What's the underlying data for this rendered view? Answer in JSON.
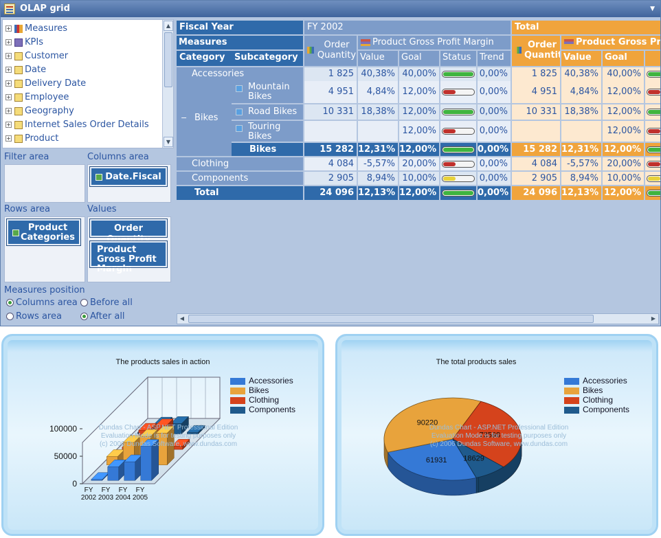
{
  "window": {
    "title": "OLAP grid"
  },
  "tree": {
    "items": [
      {
        "label": "Measures",
        "icon": "measures-icon"
      },
      {
        "label": "KPIs",
        "icon": "kpi-icon"
      },
      {
        "label": "Customer",
        "icon": "dimension-icon"
      },
      {
        "label": "Date",
        "icon": "dimension-icon"
      },
      {
        "label": "Delivery Date",
        "icon": "dimension-icon"
      },
      {
        "label": "Employee",
        "icon": "dimension-icon"
      },
      {
        "label": "Geography",
        "icon": "dimension-icon"
      },
      {
        "label": "Internet Sales Order Details",
        "icon": "dimension-icon"
      },
      {
        "label": "Product",
        "icon": "dimension-icon"
      }
    ]
  },
  "areas": {
    "filter_label": "Filter area",
    "columns_label": "Columns area",
    "rows_label": "Rows area",
    "values_label": "Values",
    "columns_field": "Date.Fiscal",
    "rows_field": "Product Categories",
    "value_fields": [
      "Order Quantity",
      "Product Gross Profit Margin"
    ]
  },
  "measures_position": {
    "label": "Measures position",
    "columns_area": "Columns area",
    "before_all": "Before all",
    "rows_area": "Rows area",
    "after_all": "After all",
    "selected_area": "Columns area",
    "selected_order": "After all"
  },
  "grid": {
    "fiscal_year_label": "Fiscal Year",
    "fy_label": "FY 2002",
    "total_label": "Total",
    "measures_label": "Measures",
    "category_label": "Category",
    "subcategory_label": "Subcategory",
    "order_quantity_label": "Order Quantity",
    "pgpm_label": "Product Gross Profit Margin",
    "value_label": "Value",
    "goal_label": "Goal",
    "status_label": "Status",
    "trend_label": "Trend",
    "status_colors": {
      "good": "#3fb43f",
      "bad": "#c0302c",
      "neutral": "#e8d23a"
    },
    "rows": [
      {
        "category": "Accessories",
        "sub": "",
        "oq": "1 825",
        "val": "40,38%",
        "goal": "40,00%",
        "status": "good",
        "trend": "0,00%",
        "t_oq": "1 825",
        "t_val": "40,38%",
        "t_goal": "40,00%"
      },
      {
        "category": "",
        "sub": "Mountain Bikes",
        "oq": "4 951",
        "val": "4,84%",
        "goal": "12,00%",
        "status": "bad",
        "trend": "0,00%",
        "t_oq": "4 951",
        "t_val": "4,84%",
        "t_goal": "12,00%"
      },
      {
        "category": "",
        "sub": "Road Bikes",
        "oq": "10 331",
        "val": "18,38%",
        "goal": "12,00%",
        "status": "good",
        "trend": "0,00%",
        "t_oq": "10 331",
        "t_val": "18,38%",
        "t_goal": "12,00%"
      },
      {
        "category": "",
        "sub": "Touring Bikes",
        "oq": "",
        "val": "",
        "goal": "12,00%",
        "status": "bad",
        "trend": "0,00%",
        "t_oq": "",
        "t_val": "",
        "t_goal": "12,00%"
      },
      {
        "category": "",
        "sub": "Bikes",
        "oq": "15 282",
        "val": "12,31%",
        "goal": "12,00%",
        "status": "good",
        "trend": "0,00%",
        "t_oq": "15 282",
        "t_val": "12,31%",
        "t_goal": "12,00%"
      },
      {
        "category": "Clothing",
        "sub": "",
        "oq": "4 084",
        "val": "-5,57%",
        "goal": "20,00%",
        "status": "bad",
        "trend": "0,00%",
        "t_oq": "4 084",
        "t_val": "-5,57%",
        "t_goal": "20,00%"
      },
      {
        "category": "Components",
        "sub": "",
        "oq": "2 905",
        "val": "8,94%",
        "goal": "10,00%",
        "status": "neutral",
        "trend": "0,00%",
        "t_oq": "2 905",
        "t_val": "8,94%",
        "t_goal": "10,00%"
      },
      {
        "category": "Total",
        "sub": "",
        "oq": "24 096",
        "val": "12,13%",
        "goal": "12,00%",
        "status": "good",
        "trend": "0,00%",
        "t_oq": "24 096",
        "t_val": "12,13%",
        "t_goal": "12,00%"
      }
    ],
    "bikes_label": "Bikes"
  },
  "charts": {
    "series_colors": {
      "Accessories": "#3579d6",
      "Bikes": "#e8a33c",
      "Clothing": "#d5431c",
      "Components": "#1f5a8c"
    },
    "watermark": [
      "Dundas Chart - ASP.NET Professional Edition",
      "Evaluation Mode is for testing purposes only",
      "(c) 2006 Dundas Software, www.dundas.com"
    ],
    "watermark_pie": [
      "Dundas Chart - ASP.NET Professional Edition",
      "Evaluation Mode is for testing purposes only",
      "(c) 2006 Dundas Software, www.dundas.com"
    ]
  },
  "chart_data": [
    {
      "type": "bar",
      "title": "The products sales in action",
      "categories": [
        "FY 2002",
        "FY 2003",
        "FY 2004",
        "FY 2005"
      ],
      "ylim": [
        0,
        100000
      ],
      "yticks": [
        "0",
        "50000",
        "100000"
      ],
      "legend_position": "top-right",
      "series": [
        {
          "name": "Accessories",
          "values": [
            1825,
            25000,
            34000,
            62000
          ]
        },
        {
          "name": "Bikes",
          "values": [
            15282,
            41000,
            52000,
            58000
          ]
        },
        {
          "name": "Clothing",
          "values": [
            4084,
            35000,
            43000,
            6000
          ]
        },
        {
          "name": "Components",
          "values": [
            2905,
            18000,
            19000,
            3000
          ]
        }
      ]
    },
    {
      "type": "pie",
      "title": "The total products sales",
      "legend_position": "top-right",
      "slices": [
        {
          "name": "Accessories",
          "value": 61931,
          "label": "61931"
        },
        {
          "name": "Bikes",
          "value": 90220,
          "label": "90220"
        },
        {
          "name": "Clothing",
          "value": 73598,
          "label": "73598"
        },
        {
          "name": "Components",
          "value": 18629,
          "label": "18629"
        }
      ]
    }
  ]
}
